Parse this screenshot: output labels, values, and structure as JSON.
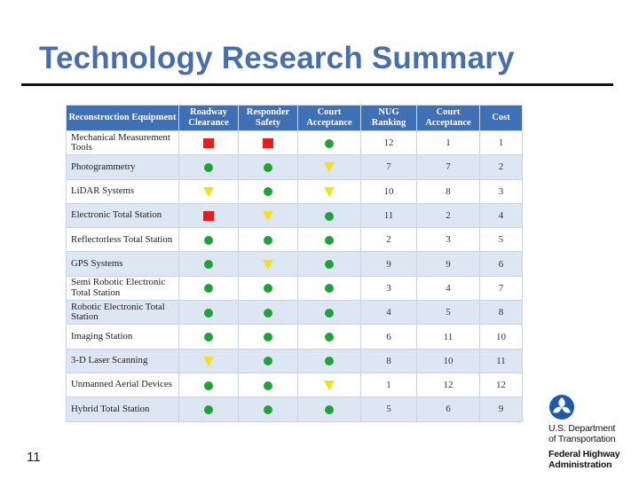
{
  "slide": {
    "title": "Technology Research Summary",
    "page_number": "11"
  },
  "table": {
    "headers": [
      "Reconstruction Equipment",
      "Roadway Clearance",
      "Responder Safety",
      "Court Acceptance",
      "NUG Ranking",
      "Court Acceptance",
      "Cost"
    ],
    "rows": [
      {
        "name": "Mechanical Measurement Tools",
        "roadway": "red-square",
        "safety": "red-square",
        "court": "green-circle",
        "nug": "12",
        "court_rank": "1",
        "cost": "1"
      },
      {
        "name": "Photogrammetry",
        "roadway": "green-circle",
        "safety": "green-circle",
        "court": "yellow-triangle",
        "nug": "7",
        "court_rank": "7",
        "cost": "2"
      },
      {
        "name": "LiDAR Systems",
        "roadway": "yellow-triangle",
        "safety": "green-circle",
        "court": "yellow-triangle",
        "nug": "10",
        "court_rank": "8",
        "cost": "3"
      },
      {
        "name": "Electronic Total Station",
        "roadway": "red-square",
        "safety": "yellow-triangle",
        "court": "green-circle",
        "nug": "11",
        "court_rank": "2",
        "cost": "4"
      },
      {
        "name": "Reflectorless Total Station",
        "roadway": "green-circle",
        "safety": "green-circle",
        "court": "green-circle",
        "nug": "2",
        "court_rank": "3",
        "cost": "5"
      },
      {
        "name": "GPS Systems",
        "roadway": "green-circle",
        "safety": "yellow-triangle",
        "court": "green-circle",
        "nug": "9",
        "court_rank": "9",
        "cost": "6"
      },
      {
        "name": "Semi Robotic Electronic Total Station",
        "roadway": "green-circle",
        "safety": "green-circle",
        "court": "green-circle",
        "nug": "3",
        "court_rank": "4",
        "cost": "7"
      },
      {
        "name": "Robotic Electronic Total Station",
        "roadway": "green-circle",
        "safety": "green-circle",
        "court": "green-circle",
        "nug": "4",
        "court_rank": "5",
        "cost": "8"
      },
      {
        "name": "Imaging Station",
        "roadway": "green-circle",
        "safety": "green-circle",
        "court": "green-circle",
        "nug": "6",
        "court_rank": "11",
        "cost": "10"
      },
      {
        "name": "3-D Laser Scanning",
        "roadway": "yellow-triangle",
        "safety": "green-circle",
        "court": "green-circle",
        "nug": "8",
        "court_rank": "10",
        "cost": "11"
      },
      {
        "name": "Unmanned Aerial Devices",
        "roadway": "green-circle",
        "safety": "green-circle",
        "court": "yellow-triangle",
        "nug": "1",
        "court_rank": "12",
        "cost": "12"
      },
      {
        "name": "Hybrid Total Station",
        "roadway": "green-circle",
        "safety": "green-circle",
        "court": "green-circle",
        "nug": "5",
        "court_rank": "6",
        "cost": "9"
      }
    ]
  },
  "logo": {
    "line1": "U.S. Department",
    "line2": "of Transportation",
    "line3": "Federal Highway",
    "line4": "Administration"
  },
  "colors": {
    "title": "#4a6fa8",
    "header_bg": "#3f6fb5",
    "alt_row": "#dde6f3",
    "green": "#1fa23a",
    "red": "#e41e1e",
    "yellow": "#f2e21a"
  }
}
